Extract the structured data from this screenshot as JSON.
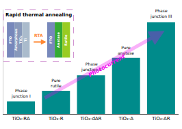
{
  "chart_data": {
    "type": "bar",
    "categories": [
      "TiO₂-RA",
      "TiO₂-R",
      "TiO₂-dAR",
      "TiO₂-A",
      "TiO₂-AR"
    ],
    "values": [
      0.13,
      0.24,
      0.4,
      0.58,
      0.95
    ],
    "color": "#008B8B",
    "ylim": [
      0,
      1.08
    ],
    "tick_labels": "x",
    "grid": false,
    "annotations": [
      {
        "text": "Phase\njunction I",
        "category": "TiO₂-RA"
      },
      {
        "text": "Pure\nrutile",
        "category": "TiO₂-R"
      },
      {
        "text": "Phase\njunction II",
        "category": "TiO₂-dAR"
      },
      {
        "text": "Pure\nanatase",
        "category": "TiO₂-A"
      },
      {
        "text": "Phase\njunction III",
        "category": "TiO₂-AR"
      },
      {
        "text": "Photocurrent",
        "color": "#ee00ee"
      }
    ],
    "inset": {
      "title": "Rapid thermal annealing",
      "color": "#cc88cc",
      "arrow": {
        "text": "RTA",
        "color": "#ff8833"
      },
      "before": [
        {
          "text": "FTO",
          "color": "#7788bb"
        },
        {
          "text": "Amorphous\nTiO₂",
          "color": "#8899bb"
        },
        {
          "text": "Ti",
          "color": "#aabbcc"
        }
      ],
      "after": [
        {
          "text": "FTO",
          "color": "#7788bb"
        },
        {
          "text": "Anatase",
          "color": "#33aa33"
        },
        {
          "text": "Rutile",
          "color": "#99cc22"
        }
      ]
    }
  }
}
